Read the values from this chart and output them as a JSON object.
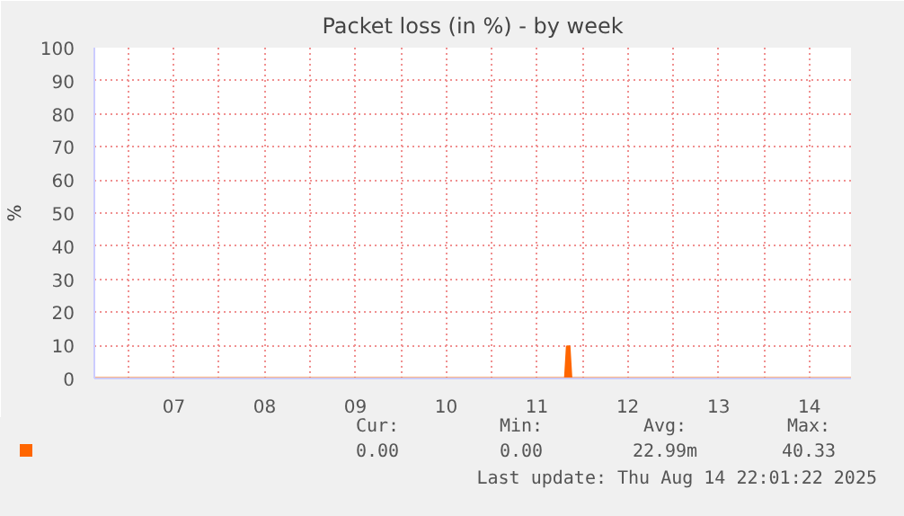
{
  "chart_data": {
    "type": "area",
    "title": "Packet loss (in %) - by week",
    "ylabel": "%",
    "x": [
      "2025-08-06T15:00",
      "2025-08-11T19:30",
      "2025-08-11T20:00",
      "2025-08-11T20:30",
      "2025-08-11T21:00",
      "2025-08-14T23:00"
    ],
    "series": [
      {
        "color": "#ff6600",
        "values": [
          0,
          0,
          9.6,
          9.6,
          0,
          0
        ]
      }
    ],
    "xlim": [
      "2025-08-06T15:00",
      "2025-08-14T23:00"
    ],
    "xticks": [
      {
        "value": "2025-08-07T00:00",
        "label": null
      },
      {
        "value": "2025-08-07T12:00",
        "label": "07"
      },
      {
        "value": "2025-08-08T00:00",
        "label": null
      },
      {
        "value": "2025-08-08T12:00",
        "label": "08"
      },
      {
        "value": "2025-08-09T00:00",
        "label": null
      },
      {
        "value": "2025-08-09T12:00",
        "label": "09"
      },
      {
        "value": "2025-08-10T00:00",
        "label": null
      },
      {
        "value": "2025-08-10T12:00",
        "label": "10"
      },
      {
        "value": "2025-08-11T00:00",
        "label": null
      },
      {
        "value": "2025-08-11T12:00",
        "label": "11"
      },
      {
        "value": "2025-08-12T00:00",
        "label": null
      },
      {
        "value": "2025-08-12T12:00",
        "label": "12"
      },
      {
        "value": "2025-08-13T00:00",
        "label": null
      },
      {
        "value": "2025-08-13T12:00",
        "label": "13"
      },
      {
        "value": "2025-08-14T00:00",
        "label": null
      },
      {
        "value": "2025-08-14T12:00",
        "label": "14"
      }
    ],
    "ylim": [
      0,
      100
    ],
    "yticks": [
      0,
      10,
      20,
      30,
      40,
      50,
      60,
      70,
      80,
      90,
      100
    ],
    "grid": true,
    "annotations": [
      "Cur:",
      "Min:",
      "Avg:",
      "Max:",
      "0.00",
      "0.00",
      "22.99m",
      "40.33",
      "Last update: Thu Aug 14 22:01:22 2025"
    ]
  }
}
